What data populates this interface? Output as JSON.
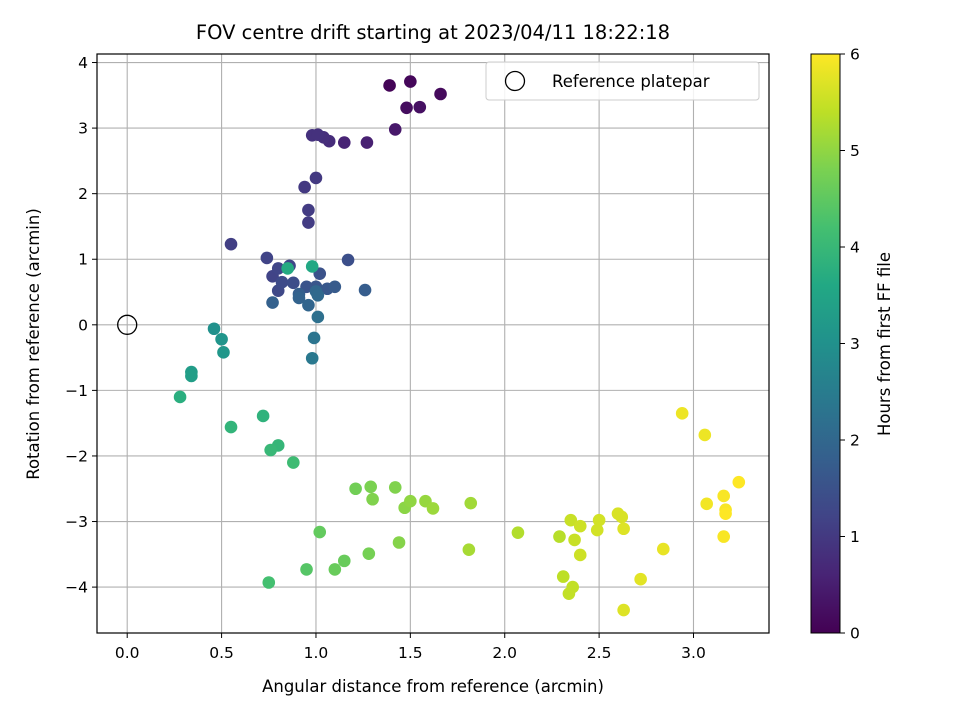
{
  "chart_data": {
    "type": "scatter",
    "title": "FOV centre drift starting at 2023/04/11 18:22:18",
    "xlabel": "Angular distance from reference (arcmin)",
    "ylabel": "Rotation from reference (arcmin)",
    "xlim": [
      -0.16,
      3.4
    ],
    "ylim": [
      -4.7,
      4.13
    ],
    "xticks": [
      0.0,
      0.5,
      1.0,
      1.5,
      2.0,
      2.5,
      3.0
    ],
    "xtick_labels": [
      "0.0",
      "0.5",
      "1.0",
      "1.5",
      "2.0",
      "2.5",
      "3.0"
    ],
    "yticks": [
      4,
      3,
      2,
      1,
      0,
      -1,
      -2,
      -3,
      -4
    ],
    "ytick_labels": [
      "4",
      "3",
      "2",
      "1",
      "0",
      "−1",
      "−2",
      "−3",
      "−4"
    ],
    "grid": true,
    "legend": {
      "placement": "top-right",
      "entries": [
        "Reference platepar"
      ]
    },
    "colorbar": {
      "label": "Hours from first FF file",
      "colormap": "viridis",
      "range": [
        0,
        6
      ],
      "ticks": [
        0,
        1,
        2,
        3,
        4,
        5,
        6
      ],
      "tick_labels": [
        "0",
        "1",
        "2",
        "3",
        "4",
        "5",
        "6"
      ]
    },
    "reference_point": {
      "x": 0.0,
      "y": 0.0,
      "label": "Reference platepar"
    },
    "series": [
      {
        "points": [
          [
            1.39,
            3.65,
            0.05
          ],
          [
            1.5,
            3.71,
            0.1
          ],
          [
            1.66,
            3.52,
            0.15
          ],
          [
            1.48,
            3.31,
            0.2
          ],
          [
            1.55,
            3.32,
            0.25
          ],
          [
            1.42,
            2.98,
            0.4
          ],
          [
            1.27,
            2.78,
            0.55
          ],
          [
            1.15,
            2.78,
            0.6
          ],
          [
            1.07,
            2.8,
            0.75
          ],
          [
            1.04,
            2.86,
            0.8
          ],
          [
            0.98,
            2.89,
            0.85
          ],
          [
            1.01,
            2.9,
            0.85
          ],
          [
            1.0,
            2.24,
            1.0
          ],
          [
            0.94,
            2.1,
            1.0
          ],
          [
            0.96,
            1.75,
            1.05
          ],
          [
            0.96,
            1.56,
            1.05
          ],
          [
            0.55,
            1.23,
            1.1
          ],
          [
            0.74,
            1.02,
            1.2
          ],
          [
            0.77,
            0.74,
            1.2
          ],
          [
            0.8,
            0.86,
            1.25
          ],
          [
            0.86,
            0.9,
            1.25
          ],
          [
            0.8,
            0.52,
            1.3
          ],
          [
            0.82,
            0.65,
            1.35
          ],
          [
            0.88,
            0.64,
            1.4
          ],
          [
            1.17,
            0.99,
            1.45
          ],
          [
            1.02,
            0.78,
            1.5
          ],
          [
            0.95,
            0.58,
            1.55
          ],
          [
            1.0,
            0.58,
            1.6
          ],
          [
            1.06,
            0.55,
            1.65
          ],
          [
            1.1,
            0.58,
            1.7
          ],
          [
            1.26,
            0.53,
            1.75
          ],
          [
            0.91,
            0.47,
            1.8
          ],
          [
            0.77,
            0.34,
            1.85
          ],
          [
            0.91,
            0.41,
            1.9
          ],
          [
            0.96,
            0.3,
            1.95
          ],
          [
            1.0,
            0.51,
            2.0
          ],
          [
            1.01,
            0.45,
            2.05
          ],
          [
            1.01,
            0.12,
            2.2
          ],
          [
            0.99,
            -0.2,
            2.3
          ],
          [
            0.98,
            -0.51,
            2.4
          ],
          [
            0.46,
            -0.06,
            3.0
          ],
          [
            0.5,
            -0.22,
            3.1
          ],
          [
            0.51,
            -0.42,
            3.15
          ],
          [
            0.34,
            -0.72,
            3.3
          ],
          [
            0.34,
            -0.78,
            3.35
          ],
          [
            0.98,
            0.89,
            3.6
          ],
          [
            0.85,
            0.86,
            3.65
          ],
          [
            0.28,
            -1.1,
            3.75
          ],
          [
            0.72,
            -1.39,
            3.85
          ],
          [
            0.55,
            -1.56,
            3.9
          ],
          [
            0.8,
            -1.84,
            3.95
          ],
          [
            0.76,
            -1.91,
            4.0
          ],
          [
            0.88,
            -2.1,
            4.1
          ],
          [
            0.75,
            -3.93,
            4.2
          ],
          [
            0.95,
            -3.73,
            4.4
          ],
          [
            1.02,
            -3.16,
            4.55
          ],
          [
            1.1,
            -3.73,
            4.6
          ],
          [
            1.15,
            -3.6,
            4.6
          ],
          [
            1.21,
            -2.5,
            4.7
          ],
          [
            1.28,
            -3.49,
            4.75
          ],
          [
            1.29,
            -2.47,
            4.8
          ],
          [
            1.3,
            -2.66,
            4.85
          ],
          [
            1.42,
            -2.48,
            4.85
          ],
          [
            1.44,
            -3.32,
            4.9
          ],
          [
            1.47,
            -2.79,
            4.95
          ],
          [
            1.5,
            -2.69,
            5.0
          ],
          [
            1.58,
            -2.69,
            5.05
          ],
          [
            1.62,
            -2.8,
            5.1
          ],
          [
            1.82,
            -2.72,
            5.15
          ],
          [
            1.81,
            -3.43,
            5.2
          ],
          [
            2.07,
            -3.17,
            5.3
          ],
          [
            2.29,
            -3.23,
            5.35
          ],
          [
            2.31,
            -3.84,
            5.4
          ],
          [
            2.34,
            -4.1,
            5.45
          ],
          [
            2.36,
            -4.0,
            5.45
          ],
          [
            2.35,
            -2.98,
            5.5
          ],
          [
            2.37,
            -3.28,
            5.5
          ],
          [
            2.4,
            -3.07,
            5.55
          ],
          [
            2.4,
            -3.51,
            5.55
          ],
          [
            2.49,
            -3.13,
            5.6
          ],
          [
            2.5,
            -2.98,
            5.6
          ],
          [
            2.6,
            -2.88,
            5.65
          ],
          [
            2.62,
            -2.93,
            5.65
          ],
          [
            2.63,
            -3.11,
            5.7
          ],
          [
            2.63,
            -4.35,
            5.7
          ],
          [
            2.72,
            -3.88,
            5.75
          ],
          [
            2.84,
            -3.42,
            5.8
          ],
          [
            2.94,
            -1.35,
            5.85
          ],
          [
            3.06,
            -1.68,
            5.85
          ],
          [
            3.07,
            -2.73,
            5.9
          ],
          [
            3.16,
            -2.61,
            5.95
          ],
          [
            3.16,
            -3.23,
            5.95
          ],
          [
            3.17,
            -2.82,
            5.95
          ],
          [
            3.17,
            -2.88,
            6.0
          ],
          [
            3.24,
            -2.4,
            6.0
          ]
        ]
      }
    ]
  }
}
